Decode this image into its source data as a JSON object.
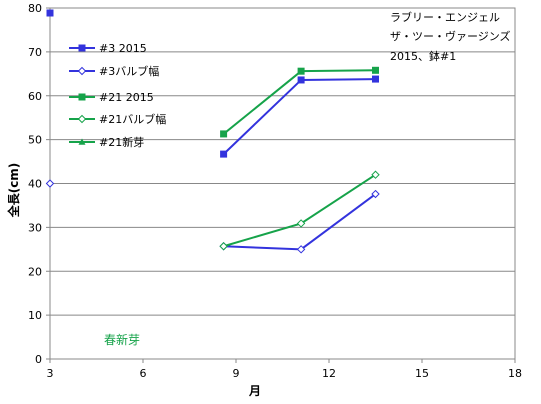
{
  "chart_data": {
    "type": "line",
    "title_lines": [
      "ラブリー・エンジェル",
      "ザ・ツー・ヴァージンズ",
      "2015、鉢#1"
    ],
    "xlabel": "月",
    "ylabel": "全長(cm)",
    "xlim": [
      3,
      18
    ],
    "ylim": [
      0,
      80
    ],
    "x_ticks": [
      3,
      6,
      9,
      12,
      15,
      18
    ],
    "y_ticks": [
      0,
      10,
      20,
      30,
      40,
      50,
      60,
      70,
      80
    ],
    "grid": "horizontal",
    "legend_position": "top-left",
    "annotation": {
      "text": "春新芽",
      "color": "#16a34a"
    },
    "series": [
      {
        "name": "#3 2015",
        "color": "#3333dd",
        "marker": "square",
        "points": [
          [
            3,
            84
          ],
          [
            8.6,
            46.7
          ],
          [
            11.1,
            63.6
          ],
          [
            13.5,
            63.8
          ]
        ]
      },
      {
        "name": "#3バルブ幅",
        "color": "#3333dd",
        "marker": "diamond-open",
        "points": [
          [
            3,
            40
          ],
          [
            8.6,
            25.7
          ],
          [
            11.1,
            25.0
          ],
          [
            13.5,
            37.6
          ]
        ]
      },
      {
        "name": "#21 2015",
        "color": "#16a34a",
        "marker": "square",
        "points": [
          [
            8.6,
            51.3
          ],
          [
            11.1,
            65.6
          ],
          [
            13.5,
            65.8
          ]
        ]
      },
      {
        "name": "#21バルブ幅",
        "color": "#16a34a",
        "marker": "diamond-open",
        "points": [
          [
            8.6,
            25.7
          ],
          [
            11.1,
            30.9
          ],
          [
            13.5,
            42.0
          ]
        ]
      },
      {
        "name": "#21新芽",
        "color": "#16a34a",
        "marker": "triangle",
        "points": []
      }
    ]
  }
}
